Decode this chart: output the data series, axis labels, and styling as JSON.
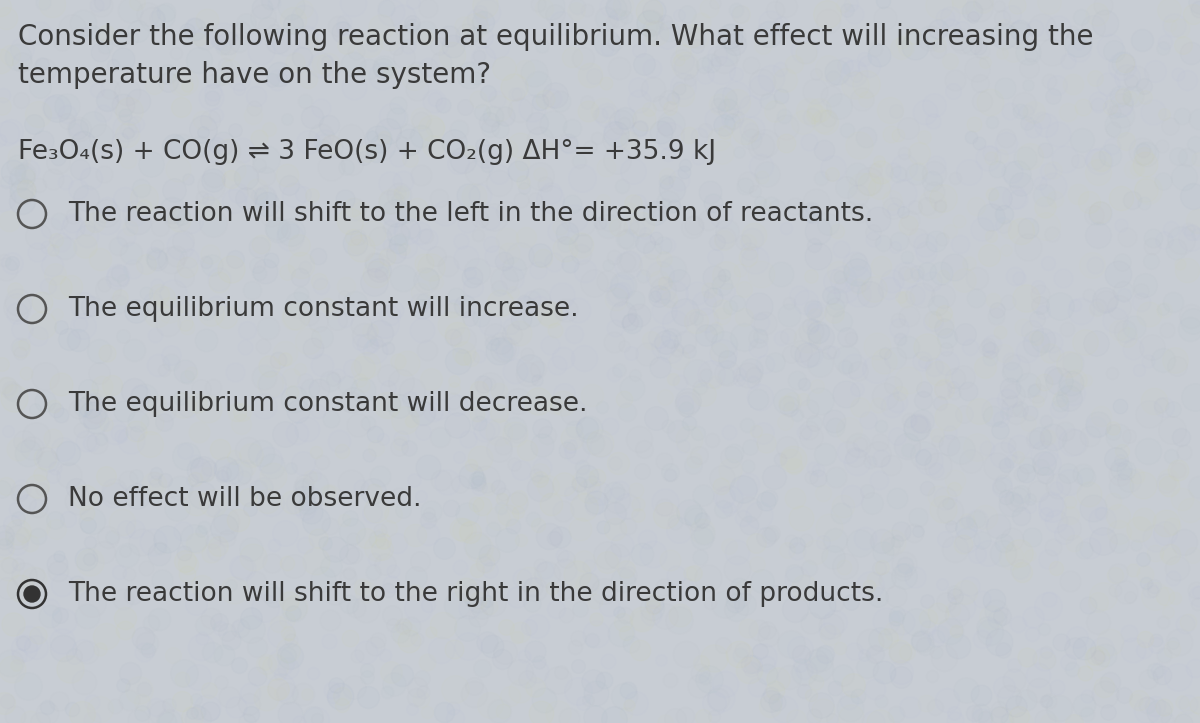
{
  "background_color": "#c8cdd4",
  "title_lines": [
    "Consider the following reaction at equilibrium. What effect will increasing the",
    "temperature have on the system?"
  ],
  "equation": "Fe₃O₄(s) + CO(g) ⇌ 3 FeO(s) + CO₂(g) ΔH°= +35.9 kJ",
  "options": [
    "The reaction will shift to the left in the direction of reactants.",
    "The equilibrium constant will increase.",
    "The equilibrium constant will decrease.",
    "No effect will be observed.",
    "The reaction will shift to the right in the direction of products."
  ],
  "selected_index": 4,
  "text_color": "#3a3a3a",
  "font_size_title": 20,
  "font_size_equation": 19,
  "font_size_options": 19,
  "radio_filled_color": "#333333",
  "radio_outer_color": "#555555",
  "radio_empty_color": "#777777"
}
